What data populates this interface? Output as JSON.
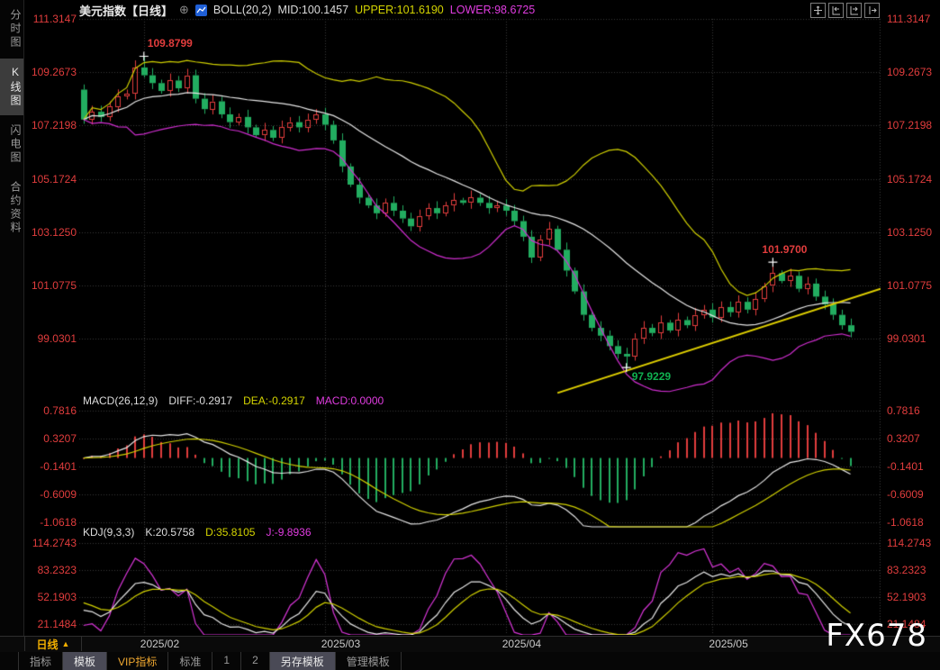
{
  "header": {
    "title": "美元指数【日线】",
    "add_icon": "⊕",
    "boll_label": "BOLL(20,2)",
    "mid_label": "MID:100.1457",
    "upper_label": "UPPER:101.6190",
    "lower_label": "LOWER:98.6725"
  },
  "sidebar": {
    "items": [
      {
        "label": "分时图",
        "selected": false
      },
      {
        "label": "K线图",
        "selected": true
      },
      {
        "label": "闪电图",
        "selected": false
      },
      {
        "label": "合约资料",
        "selected": false
      }
    ]
  },
  "macd_header": {
    "name": "MACD(26,12,9)",
    "diff": "DIFF:-0.2917",
    "dea": "DEA:-0.2917",
    "macd": "MACD:0.0000"
  },
  "kdj_header": {
    "name": "KDJ(9,3,3)",
    "k": "K:20.5758",
    "d": "D:35.8105",
    "j": "J:-9.8936"
  },
  "axes": {
    "main": [
      "111.3147",
      "109.2673",
      "107.2198",
      "105.1724",
      "103.1250",
      "101.0775",
      "99.0301"
    ],
    "macd": [
      "0.7816",
      "0.3207",
      "-0.1401",
      "-0.6009",
      "-1.0618"
    ],
    "kdj": [
      "114.2743",
      "83.2323",
      "52.1903",
      "21.1484"
    ]
  },
  "xaxis": {
    "period": "日线",
    "arrow": "▲",
    "months": [
      "2025/02",
      "2025/03",
      "2025/04",
      "2025/05"
    ]
  },
  "toolbar": {
    "items": [
      {
        "label": "指标",
        "selected": false,
        "vip": false
      },
      {
        "label": "模板",
        "selected": true,
        "vip": false
      },
      {
        "label": "VIP指标",
        "selected": false,
        "vip": true
      },
      {
        "label": "标准",
        "selected": false,
        "vip": false
      },
      {
        "label": "1",
        "selected": false,
        "vip": false
      },
      {
        "label": "2",
        "selected": false,
        "vip": false
      },
      {
        "label": "另存模板",
        "selected": true,
        "vip": false
      },
      {
        "label": "管理模板",
        "selected": false,
        "vip": false
      }
    ]
  },
  "watermark": "FX678",
  "colors": {
    "bg": "#000000",
    "axis_text": "#e23d3d",
    "up": "#e23d3d",
    "down": "#22ad60",
    "boll_mid": "#e6e6e6",
    "boll_upper": "#d0d000",
    "boll_lower": "#d02ed0",
    "macd_diff": "#e6e6e6",
    "macd_dea": "#d0d000",
    "kdj_k": "#e6e6e6",
    "kdj_d": "#d0d000",
    "kdj_j": "#d935d9",
    "trendline": "#e0d000",
    "grid": "#383838",
    "cross": "#ffffff",
    "annotation_high": "#e23d3d",
    "annotation_low": "#10b050"
  },
  "chart_data": {
    "type": "candlestick",
    "title": "美元指数 日线 (US Dollar Index, daily)",
    "legend": [
      "BOLL(20,2)",
      "MACD(26,12,9)",
      "KDJ(9,3,3)"
    ],
    "boll": {
      "period": 20,
      "mult": 2,
      "mid": 100.1457,
      "upper": 101.619,
      "lower": 98.6725
    },
    "macd": {
      "fast": 12,
      "slow": 26,
      "signal": 9,
      "diff": -0.2917,
      "dea": -0.2917,
      "bar": 0.0
    },
    "kdj": {
      "params": [
        9,
        3,
        3
      ],
      "k": 20.5758,
      "d": 35.8105,
      "j": -9.8936
    },
    "main_tick_values": [
      111.3147,
      109.2673,
      107.2198,
      105.1724,
      103.125,
      101.0775,
      99.0301
    ],
    "macd_tick_values": [
      0.7816,
      0.3207,
      -0.1401,
      -0.6009,
      -1.0618
    ],
    "kdj_tick_values": [
      114.2743,
      83.2323,
      52.1903,
      21.1484
    ],
    "closes": [
      107.45,
      107.75,
      107.55,
      107.95,
      108.35,
      108.45,
      109.45,
      109.15,
      108.85,
      108.55,
      108.95,
      108.65,
      109.15,
      108.25,
      107.85,
      108.15,
      107.65,
      107.35,
      107.55,
      107.15,
      106.85,
      107.05,
      106.75,
      107.15,
      107.35,
      107.15,
      107.45,
      107.65,
      107.25,
      106.65,
      105.65,
      104.95,
      104.45,
      104.15,
      103.85,
      104.25,
      103.95,
      103.65,
      103.35,
      103.75,
      104.05,
      103.85,
      104.15,
      104.35,
      104.25,
      104.45,
      104.25,
      104.05,
      104.15,
      103.95,
      103.55,
      102.95,
      102.15,
      102.85,
      103.25,
      102.45,
      101.65,
      100.85,
      99.95,
      99.45,
      99.15,
      98.75,
      98.45,
      98.35,
      99.05,
      99.45,
      99.25,
      99.65,
      99.35,
      99.75,
      99.55,
      99.95,
      100.15,
      99.85,
      100.25,
      100.05,
      100.45,
      100.15,
      100.55,
      101.05,
      101.55,
      101.25,
      101.45,
      100.95,
      101.15,
      100.65,
      100.35,
      99.95,
      99.55,
      99.3
    ],
    "month_tick_indices": [
      7,
      28,
      49,
      73
    ],
    "annotations": [
      {
        "index": 7,
        "kind": "high",
        "value": 109.8799,
        "label": "109.8799"
      },
      {
        "index": 63,
        "kind": "low",
        "value": 97.9229,
        "label": "97.9229"
      },
      {
        "index": 80,
        "kind": "high",
        "value": 101.97,
        "label": "101.9700"
      }
    ],
    "trendline": {
      "x1_index": 55,
      "price1": 96.95,
      "x2_index": 93,
      "price2": 100.95
    }
  }
}
